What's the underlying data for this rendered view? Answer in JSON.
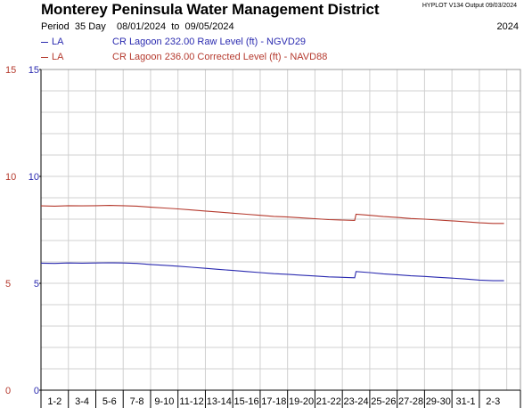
{
  "header": {
    "title": "Monterey Peninsula Water Management District",
    "hyplot": "HYPLOT V134  Output 09/03/2024",
    "period_label": "Period",
    "period_length": "35 Day",
    "start_date": "08/01/2024",
    "to_word": "to",
    "end_date": "09/05/2024",
    "year": "2024"
  },
  "legend": [
    {
      "site": "LA",
      "label": "CR Lagoon  232.00 Raw Level (ft) - NGVD29",
      "color": "#2b2bb0"
    },
    {
      "site": "LA",
      "label": "CR Lagoon  236.00 Corrected Level (ft) - NAVD88",
      "color": "#b53a2e"
    }
  ],
  "colors": {
    "grid": "#d0d0d0",
    "axis": "#000000",
    "red_axis": "#b53a2e"
  },
  "chart_data": {
    "type": "line",
    "title": "Monterey Peninsula Water Management District",
    "ylim": [
      0,
      15
    ],
    "yticks": [
      0,
      5,
      10,
      15
    ],
    "xlim": [
      0,
      35
    ],
    "grid": true,
    "x_tick_labels": [
      "1-2",
      "3-4",
      "5-6",
      "7-8",
      "9-10",
      "11-12",
      "13-14",
      "15-16",
      "17-18",
      "19-20",
      "21-22",
      "23-24",
      "25-26",
      "27-28",
      "29-30",
      "31-1",
      "2-3"
    ],
    "series": [
      {
        "name": "CR Lagoon  232.00 Raw Level (ft) - NGVD29",
        "color": "#2b2bb0",
        "x": [
          0,
          1,
          2,
          3,
          4,
          5,
          6,
          7,
          8,
          9,
          10,
          11,
          12,
          13,
          14,
          15,
          16,
          17,
          18,
          19,
          20,
          21,
          22,
          22.9,
          23,
          24,
          25,
          26,
          27,
          28,
          29,
          30,
          31,
          32,
          33,
          33.8
        ],
        "y": [
          5.94,
          5.93,
          5.95,
          5.94,
          5.95,
          5.96,
          5.95,
          5.93,
          5.88,
          5.84,
          5.8,
          5.75,
          5.7,
          5.65,
          5.6,
          5.55,
          5.5,
          5.45,
          5.42,
          5.38,
          5.34,
          5.3,
          5.28,
          5.26,
          5.55,
          5.5,
          5.44,
          5.4,
          5.35,
          5.32,
          5.28,
          5.24,
          5.2,
          5.15,
          5.12,
          5.12
        ]
      },
      {
        "name": "CR Lagoon  236.00 Corrected Level (ft) - NAVD88",
        "color": "#b53a2e",
        "x": [
          0,
          1,
          2,
          3,
          4,
          5,
          6,
          7,
          8,
          9,
          10,
          11,
          12,
          13,
          14,
          15,
          16,
          17,
          18,
          19,
          20,
          21,
          22,
          22.9,
          23,
          24,
          25,
          26,
          27,
          28,
          29,
          30,
          31,
          32,
          33,
          33.8
        ],
        "y": [
          8.62,
          8.61,
          8.63,
          8.62,
          8.63,
          8.64,
          8.63,
          8.61,
          8.56,
          8.52,
          8.48,
          8.43,
          8.38,
          8.33,
          8.28,
          8.23,
          8.18,
          8.13,
          8.1,
          8.06,
          8.02,
          7.98,
          7.96,
          7.94,
          8.23,
          8.18,
          8.12,
          8.08,
          8.03,
          8.0,
          7.96,
          7.92,
          7.88,
          7.83,
          7.8,
          7.8
        ]
      }
    ]
  }
}
